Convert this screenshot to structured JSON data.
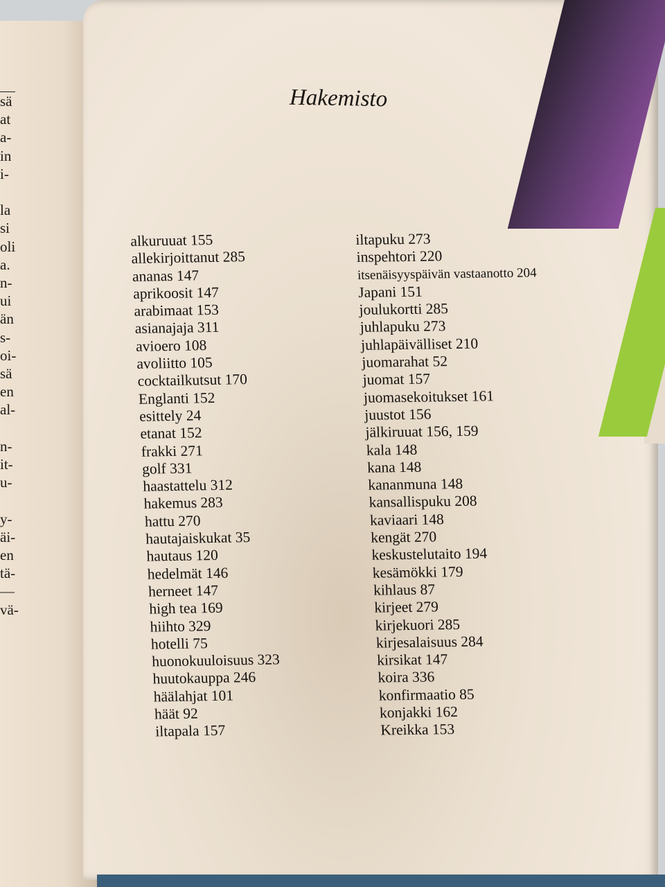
{
  "left_page_fragments": [
    "sä",
    "at",
    "a-",
    "in",
    "i-",
    "",
    "la",
    "si",
    "oli",
    "a.",
    "n-",
    "ui",
    "än",
    "s-",
    "oi-",
    "sä",
    "en",
    "al-",
    "",
    "n-",
    "it-",
    "u-",
    "",
    "y-",
    "äi-",
    "en",
    "tä-",
    "—",
    "vä-"
  ],
  "title": "Hakemisto",
  "index_left": [
    "alkuruuat 155",
    "allekirjoittanut 285",
    "ananas 147",
    "aprikoosit 147",
    "arabimaat 153",
    "asianajaja 311",
    "avioero 108",
    "avoliitto 105",
    "cocktailkutsut 170",
    "Englanti 152",
    "esittely 24",
    "etanat 152",
    "frakki 271",
    "golf 331",
    "haastattelu 312",
    "hakemus 283",
    "hattu 270",
    "hautajaiskukat 35",
    "hautaus 120",
    "hedelmät 146",
    "herneet 147",
    "high tea 169",
    "hiihto 329",
    "hotelli 75",
    "huonokuuloisuus 323",
    "huutokauppa 246",
    "häälahjat 101",
    "häät 92",
    "iltapala 157"
  ],
  "index_right": [
    "iltapuku 273",
    "inspehtori 220",
    "itsenäisyyspäivän vastaanotto 204",
    "Japani 151",
    "joulukortti 285",
    "juhlapuku 273",
    "juhlapäivälliset 210",
    "juomarahat 52",
    "juomat 157",
    "juomasekoitukset 161",
    "juustot 156",
    "jälkiruuat 156, 159",
    "kala 148",
    "kana 148",
    "kananmuna 148",
    "kansallispuku 208",
    "kaviaari 148",
    "kengät 270",
    "keskustelutaito 194",
    "kesämökki 179",
    "kihlaus 87",
    "kirjeet 279",
    "kirjekuori 285",
    "kirjesalaisuus 284",
    "kirsikat 147",
    "koira 336",
    "konfirmaatio 85",
    "konjakki 162",
    "Kreikka 153"
  ]
}
